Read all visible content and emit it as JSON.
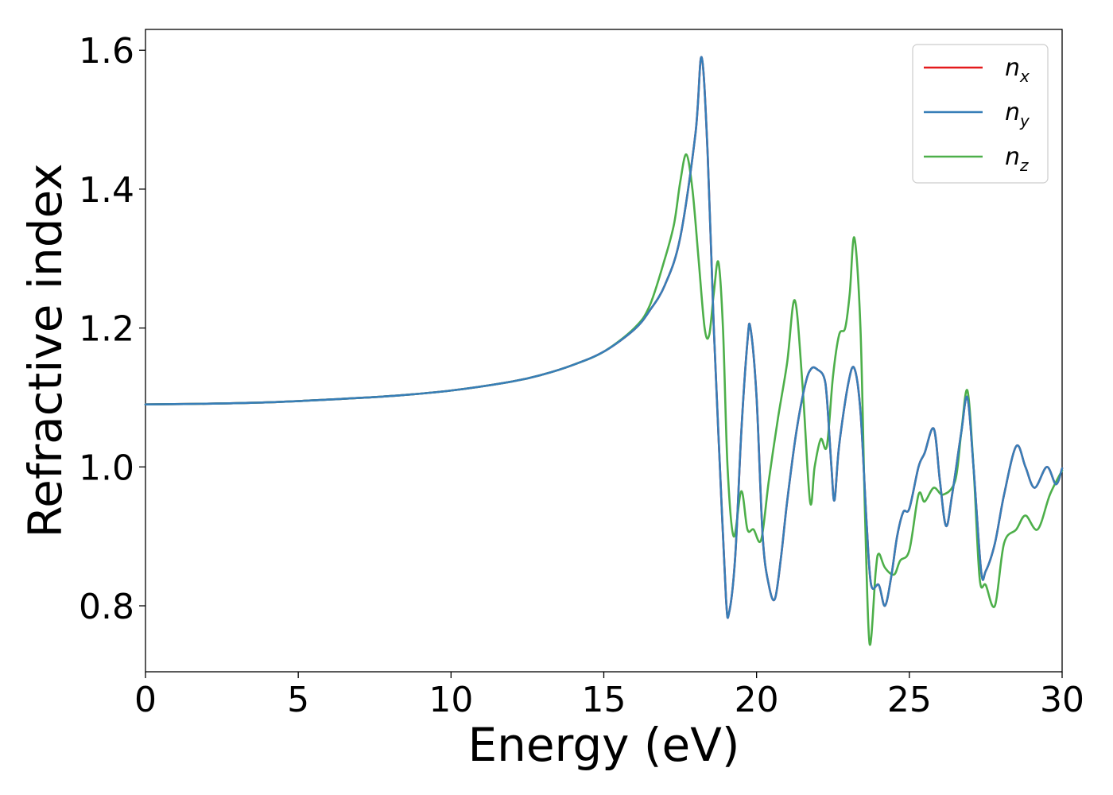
{
  "chart_data": {
    "type": "line",
    "title": "",
    "xlabel": "Energy (eV)",
    "ylabel": "Refractive index",
    "xlim": [
      0,
      30
    ],
    "ylim": [
      0.705,
      1.63
    ],
    "xticks": [
      0,
      5,
      10,
      15,
      20,
      25,
      30
    ],
    "yticks": [
      0.8,
      1.0,
      1.2,
      1.4,
      1.6
    ],
    "grid": false,
    "legend_position": "top-right",
    "colors": {
      "n_x": "#e41a1c",
      "n_y": "#377eb8",
      "n_z": "#4daf4a"
    },
    "series": [
      {
        "name": "n_x",
        "legend": {
          "base": "n",
          "sub": "x"
        },
        "color": "#e41a1c",
        "points": [
          [
            0,
            1.09
          ],
          [
            2,
            1.091
          ],
          [
            4,
            1.093
          ],
          [
            6,
            1.097
          ],
          [
            8,
            1.102
          ],
          [
            10,
            1.11
          ],
          [
            12,
            1.123
          ],
          [
            13,
            1.133
          ],
          [
            14,
            1.147
          ],
          [
            15,
            1.166
          ],
          [
            16,
            1.198
          ],
          [
            16.5,
            1.225
          ],
          [
            17,
            1.262
          ],
          [
            17.5,
            1.33
          ],
          [
            18,
            1.48
          ],
          [
            18.2,
            1.59
          ],
          [
            18.4,
            1.45
          ],
          [
            18.6,
            1.2
          ],
          [
            18.8,
            1.0
          ],
          [
            19.0,
            0.81
          ],
          [
            19.1,
            0.79
          ],
          [
            19.3,
            0.87
          ],
          [
            19.5,
            1.05
          ],
          [
            19.7,
            1.18
          ],
          [
            19.8,
            1.2
          ],
          [
            20.0,
            1.1
          ],
          [
            20.2,
            0.9
          ],
          [
            20.4,
            0.83
          ],
          [
            20.6,
            0.81
          ],
          [
            20.8,
            0.87
          ],
          [
            21.0,
            0.95
          ],
          [
            21.3,
            1.05
          ],
          [
            21.6,
            1.12
          ],
          [
            21.8,
            1.142
          ],
          [
            22.0,
            1.14
          ],
          [
            22.2,
            1.13
          ],
          [
            22.3,
            1.1
          ],
          [
            22.45,
            1.0
          ],
          [
            22.55,
            0.952
          ],
          [
            22.7,
            1.03
          ],
          [
            23.0,
            1.12
          ],
          [
            23.2,
            1.142
          ],
          [
            23.4,
            1.08
          ],
          [
            23.6,
            0.92
          ],
          [
            23.75,
            0.83
          ],
          [
            24.0,
            0.83
          ],
          [
            24.2,
            0.8
          ],
          [
            24.4,
            0.84
          ],
          [
            24.6,
            0.9
          ],
          [
            24.8,
            0.935
          ],
          [
            25.0,
            0.94
          ],
          [
            25.3,
            1.0
          ],
          [
            25.5,
            1.02
          ],
          [
            25.8,
            1.055
          ],
          [
            26.0,
            0.98
          ],
          [
            26.2,
            0.915
          ],
          [
            26.4,
            0.96
          ],
          [
            26.7,
            1.05
          ],
          [
            26.9,
            1.1
          ],
          [
            27.1,
            1.0
          ],
          [
            27.35,
            0.85
          ],
          [
            27.5,
            0.85
          ],
          [
            27.8,
            0.89
          ],
          [
            28.1,
            0.96
          ],
          [
            28.5,
            1.03
          ],
          [
            28.8,
            1.0
          ],
          [
            29.1,
            0.97
          ],
          [
            29.5,
            1.0
          ],
          [
            29.8,
            0.975
          ],
          [
            30,
            0.998
          ]
        ]
      },
      {
        "name": "n_y",
        "legend": {
          "base": "n",
          "sub": "y"
        },
        "color": "#377eb8",
        "points": [
          [
            0,
            1.09
          ],
          [
            2,
            1.091
          ],
          [
            4,
            1.093
          ],
          [
            6,
            1.097
          ],
          [
            8,
            1.102
          ],
          [
            10,
            1.11
          ],
          [
            12,
            1.123
          ],
          [
            13,
            1.133
          ],
          [
            14,
            1.147
          ],
          [
            15,
            1.166
          ],
          [
            16,
            1.198
          ],
          [
            16.5,
            1.225
          ],
          [
            17,
            1.262
          ],
          [
            17.5,
            1.33
          ],
          [
            18,
            1.48
          ],
          [
            18.2,
            1.59
          ],
          [
            18.4,
            1.45
          ],
          [
            18.6,
            1.2
          ],
          [
            18.8,
            1.0
          ],
          [
            19.0,
            0.81
          ],
          [
            19.1,
            0.79
          ],
          [
            19.3,
            0.87
          ],
          [
            19.5,
            1.05
          ],
          [
            19.7,
            1.18
          ],
          [
            19.8,
            1.2
          ],
          [
            20.0,
            1.1
          ],
          [
            20.2,
            0.9
          ],
          [
            20.4,
            0.83
          ],
          [
            20.6,
            0.81
          ],
          [
            20.8,
            0.87
          ],
          [
            21.0,
            0.95
          ],
          [
            21.3,
            1.05
          ],
          [
            21.6,
            1.12
          ],
          [
            21.8,
            1.142
          ],
          [
            22.0,
            1.14
          ],
          [
            22.2,
            1.13
          ],
          [
            22.3,
            1.1
          ],
          [
            22.45,
            1.0
          ],
          [
            22.55,
            0.952
          ],
          [
            22.7,
            1.03
          ],
          [
            23.0,
            1.12
          ],
          [
            23.2,
            1.142
          ],
          [
            23.4,
            1.08
          ],
          [
            23.6,
            0.92
          ],
          [
            23.75,
            0.83
          ],
          [
            24.0,
            0.83
          ],
          [
            24.2,
            0.8
          ],
          [
            24.4,
            0.84
          ],
          [
            24.6,
            0.9
          ],
          [
            24.8,
            0.935
          ],
          [
            25.0,
            0.94
          ],
          [
            25.3,
            1.0
          ],
          [
            25.5,
            1.02
          ],
          [
            25.8,
            1.055
          ],
          [
            26.0,
            0.98
          ],
          [
            26.2,
            0.915
          ],
          [
            26.4,
            0.96
          ],
          [
            26.7,
            1.05
          ],
          [
            26.9,
            1.1
          ],
          [
            27.1,
            1.0
          ],
          [
            27.35,
            0.85
          ],
          [
            27.5,
            0.85
          ],
          [
            27.8,
            0.89
          ],
          [
            28.1,
            0.96
          ],
          [
            28.5,
            1.03
          ],
          [
            28.8,
            1.0
          ],
          [
            29.1,
            0.97
          ],
          [
            29.5,
            1.0
          ],
          [
            29.8,
            0.975
          ],
          [
            30,
            0.998
          ]
        ]
      },
      {
        "name": "n_z",
        "legend": {
          "base": "n",
          "sub": "z"
        },
        "color": "#4daf4a",
        "points": [
          [
            0,
            1.09
          ],
          [
            2,
            1.091
          ],
          [
            4,
            1.093
          ],
          [
            6,
            1.097
          ],
          [
            8,
            1.102
          ],
          [
            10,
            1.11
          ],
          [
            12,
            1.123
          ],
          [
            13,
            1.133
          ],
          [
            14,
            1.147
          ],
          [
            15,
            1.166
          ],
          [
            16,
            1.2
          ],
          [
            16.5,
            1.232
          ],
          [
            17,
            1.3
          ],
          [
            17.3,
            1.35
          ],
          [
            17.5,
            1.41
          ],
          [
            17.7,
            1.45
          ],
          [
            17.9,
            1.4
          ],
          [
            18.1,
            1.3
          ],
          [
            18.3,
            1.2
          ],
          [
            18.45,
            1.19
          ],
          [
            18.6,
            1.25
          ],
          [
            18.75,
            1.295
          ],
          [
            18.9,
            1.2
          ],
          [
            19.05,
            1.0
          ],
          [
            19.25,
            0.9
          ],
          [
            19.5,
            0.965
          ],
          [
            19.7,
            0.91
          ],
          [
            19.9,
            0.91
          ],
          [
            20.15,
            0.895
          ],
          [
            20.4,
            0.98
          ],
          [
            20.7,
            1.07
          ],
          [
            21.0,
            1.15
          ],
          [
            21.25,
            1.24
          ],
          [
            21.5,
            1.12
          ],
          [
            21.75,
            0.95
          ],
          [
            21.9,
            1.0
          ],
          [
            22.1,
            1.04
          ],
          [
            22.3,
            1.03
          ],
          [
            22.5,
            1.13
          ],
          [
            22.7,
            1.19
          ],
          [
            22.9,
            1.2
          ],
          [
            23.05,
            1.25
          ],
          [
            23.2,
            1.33
          ],
          [
            23.4,
            1.2
          ],
          [
            23.55,
            0.93
          ],
          [
            23.7,
            0.745
          ],
          [
            23.9,
            0.85
          ],
          [
            24.0,
            0.875
          ],
          [
            24.2,
            0.855
          ],
          [
            24.5,
            0.845
          ],
          [
            24.7,
            0.865
          ],
          [
            25.0,
            0.88
          ],
          [
            25.3,
            0.96
          ],
          [
            25.5,
            0.95
          ],
          [
            25.8,
            0.97
          ],
          [
            26.1,
            0.96
          ],
          [
            26.5,
            0.98
          ],
          [
            26.7,
            1.05
          ],
          [
            26.9,
            1.11
          ],
          [
            27.1,
            1.0
          ],
          [
            27.3,
            0.84
          ],
          [
            27.5,
            0.83
          ],
          [
            27.8,
            0.8
          ],
          [
            28.1,
            0.89
          ],
          [
            28.5,
            0.91
          ],
          [
            28.8,
            0.93
          ],
          [
            29.2,
            0.91
          ],
          [
            29.6,
            0.96
          ],
          [
            30,
            0.995
          ]
        ]
      }
    ]
  }
}
